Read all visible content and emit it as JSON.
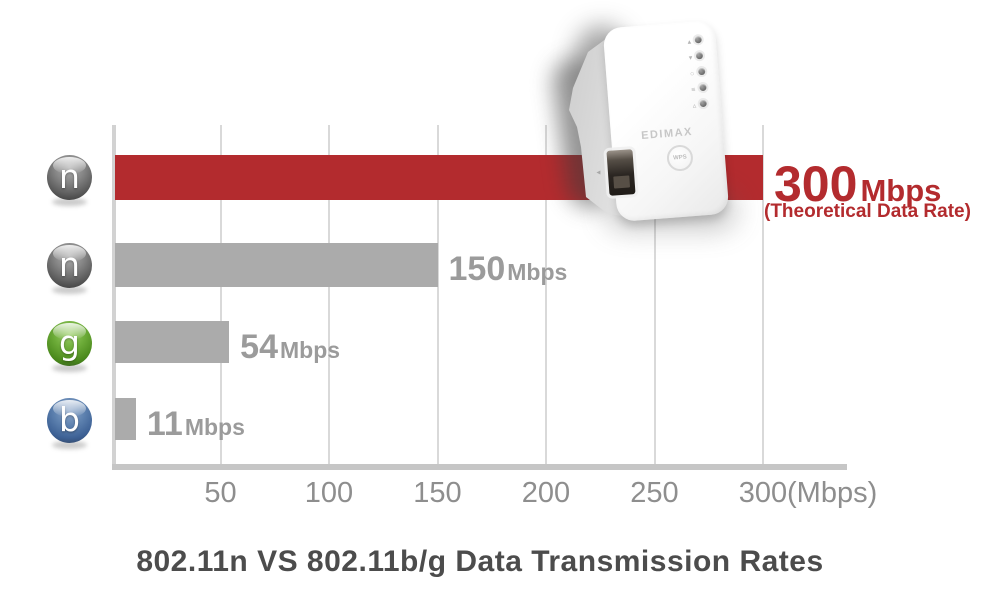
{
  "chart_data": {
    "type": "bar",
    "orientation": "horizontal",
    "title": "802.11n VS 802.11b/g Data Transmission Rates",
    "categories": [
      "802.11n",
      "802.11n",
      "802.11g",
      "802.11b"
    ],
    "category_icon_letters": [
      "n",
      "n",
      "g",
      "b"
    ],
    "values": [
      300,
      150,
      54,
      11
    ],
    "value_labels": [
      {
        "num": "300",
        "unit": "Mbps",
        "note": "(Theoretical Data Rate)"
      },
      {
        "num": "150",
        "unit": "Mbps",
        "note": ""
      },
      {
        "num": "54",
        "unit": "Mbps",
        "note": ""
      },
      {
        "num": "11",
        "unit": "Mbps",
        "note": ""
      }
    ],
    "x_ticks": [
      50,
      100,
      150,
      200,
      250,
      300
    ],
    "x_unit_label": "(Mbps)",
    "xlim": [
      0,
      300
    ],
    "grid": true,
    "legend_position": "none",
    "bar_colors": [
      "#b32b2e",
      "#ababab",
      "#ababab",
      "#ababab"
    ],
    "value_label_colors": [
      "#b32b2e",
      "#9b9b9b",
      "#9b9b9b",
      "#9b9b9b"
    ]
  },
  "colors": {
    "accent_red": "#b32b2e",
    "bar_gray": "#ababab",
    "grid_gray": "#d9d9d9",
    "axis_gray": "#c6c6c6",
    "tick_label_gray": "#8e8e8e",
    "title_gray": "#4c4c4c",
    "ball_gray": "#6f6f6f",
    "ball_green": "#5ea32f",
    "ball_blue": "#51749f"
  },
  "device": {
    "brand": "EDIMAX",
    "wps_button_label": "WPS",
    "led_count": 5,
    "led_glyphs": [
      "▴",
      "▾",
      "○",
      "≡",
      "▵"
    ]
  }
}
